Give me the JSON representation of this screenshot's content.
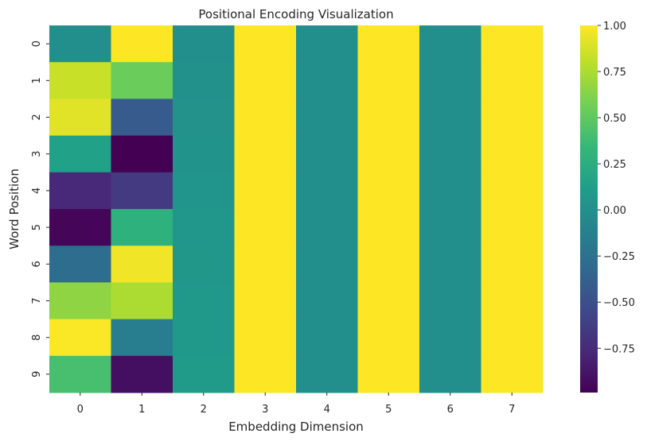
{
  "chart_data": {
    "type": "heatmap",
    "title": "Positional Encoding Visualization",
    "xlabel": "Embedding Dimension",
    "ylabel": "Word Position",
    "x": [
      "0",
      "1",
      "2",
      "3",
      "4",
      "5",
      "6",
      "7"
    ],
    "y": [
      "0",
      "1",
      "2",
      "3",
      "4",
      "5",
      "6",
      "7",
      "8",
      "9"
    ],
    "values": [
      [
        0.0,
        1.0,
        0.0,
        1.0,
        0.0,
        1.0,
        0.0,
        1.0
      ],
      [
        0.84,
        0.54,
        0.01,
        1.0,
        0.0,
        1.0,
        0.0,
        1.0
      ],
      [
        0.91,
        -0.42,
        0.02,
        1.0,
        0.0,
        1.0,
        0.0,
        1.0
      ],
      [
        0.14,
        -0.99,
        0.03,
        1.0,
        0.0,
        1.0,
        0.0,
        1.0
      ],
      [
        -0.76,
        -0.65,
        0.04,
        1.0,
        0.0,
        1.0,
        0.0,
        1.0
      ],
      [
        -0.96,
        0.28,
        0.05,
        1.0,
        0.0,
        1.0,
        0.0,
        1.0
      ],
      [
        -0.28,
        0.96,
        0.06,
        1.0,
        0.0,
        1.0,
        0.0,
        1.0
      ],
      [
        0.66,
        0.75,
        0.07,
        1.0,
        0.0,
        1.0,
        0.0,
        1.0
      ],
      [
        0.99,
        -0.15,
        0.08,
        1.0,
        0.0,
        1.0,
        0.0,
        1.0
      ],
      [
        0.41,
        -0.91,
        0.09,
        1.0,
        0.0,
        1.0,
        0.0,
        1.0
      ]
    ],
    "colormap": "viridis",
    "vmin": -0.99,
    "vmax": 1.0,
    "colorbar_ticks": [
      "1.00",
      "0.75",
      "0.50",
      "0.25",
      "0.00",
      "−0.25",
      "−0.50",
      "−0.75"
    ],
    "colorbar_tick_values": [
      1.0,
      0.75,
      0.5,
      0.25,
      0.0,
      -0.25,
      -0.5,
      -0.75
    ],
    "grid": false,
    "legend": "colorbar-right"
  }
}
